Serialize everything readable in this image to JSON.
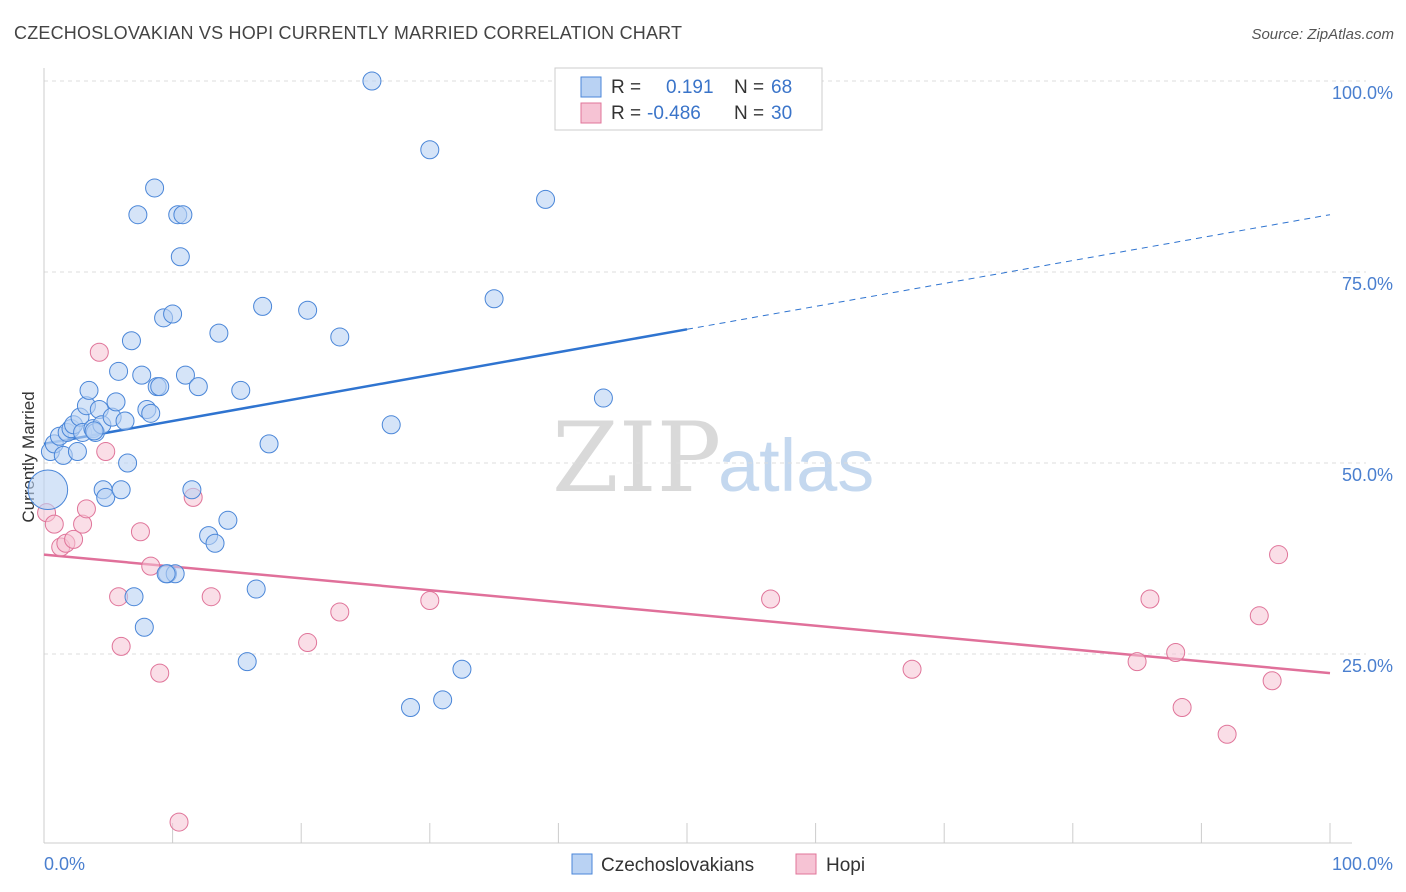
{
  "title": "CZECHOSLOVAKIAN VS HOPI CURRENTLY MARRIED CORRELATION CHART",
  "source": "Source: ZipAtlas.com",
  "watermark": {
    "zip": "ZIP",
    "atlas": "atlas"
  },
  "colors": {
    "blue": "#4a86d8",
    "blue_fill": "#b9d2f3",
    "blue_line": "#2f74d0",
    "pink": "#e0759a",
    "pink_fill": "#f6c3d4",
    "pink_line": "#e0709a",
    "grid": "#dddddd",
    "axis_text": "#4a7fcf"
  },
  "legend": {
    "rows": [
      {
        "r_label": "R =",
        "r_value": "0.191",
        "n_label": "N =",
        "n_value": "68",
        "series": "blue"
      },
      {
        "r_label": "R =",
        "r_value": "-0.486",
        "n_label": "N =",
        "n_value": "30",
        "series": "pink"
      }
    ]
  },
  "bottom_legend": {
    "items": [
      {
        "label": "Czechoslovakians",
        "series": "blue"
      },
      {
        "label": "Hopi",
        "series": "pink"
      }
    ]
  },
  "chart_data": {
    "type": "scatter",
    "title": "CZECHOSLOVAKIAN VS HOPI CURRENTLY MARRIED CORRELATION CHART",
    "xlabel": "",
    "ylabel": "Currently Married",
    "xlim": [
      0,
      100
    ],
    "ylim": [
      0,
      105
    ],
    "x_tick_labels": [
      "0.0%",
      "100.0%"
    ],
    "y_ticks": [
      25,
      50,
      75,
      100
    ],
    "y_tick_labels": [
      "25.0%",
      "50.0%",
      "75.0%",
      "100.0%"
    ],
    "grid": true,
    "legend_position": "top-center",
    "series": [
      {
        "name": "Czechoslovakians",
        "color": "#4a86d8",
        "r": 0.191,
        "n": 68,
        "trend": {
          "x0": 0,
          "y0": 52.5,
          "x1": 50,
          "y1": 67.5,
          "dashed_to_x": 100,
          "dashed_to_y": 82.5
        },
        "points": [
          [
            0.3,
            46.5,
            2.2
          ],
          [
            0.5,
            51.5,
            1
          ],
          [
            0.8,
            52.5,
            1
          ],
          [
            1.2,
            53.5,
            1
          ],
          [
            1.5,
            51,
            1
          ],
          [
            1.8,
            54,
            1
          ],
          [
            2.1,
            54.5,
            1
          ],
          [
            2.3,
            55,
            1
          ],
          [
            2.6,
            51.5,
            1
          ],
          [
            2.8,
            56,
            1
          ],
          [
            3.0,
            54,
            1
          ],
          [
            3.3,
            57.5,
            1
          ],
          [
            3.5,
            59.5,
            1
          ],
          [
            3.8,
            54.5,
            1
          ],
          [
            4.0,
            54,
            1
          ],
          [
            4.3,
            57,
            1
          ],
          [
            4.5,
            55,
            1
          ],
          [
            4.6,
            46.5,
            1
          ],
          [
            4.8,
            45.5,
            1
          ],
          [
            5.3,
            56,
            1
          ],
          [
            5.6,
            58,
            1
          ],
          [
            5.8,
            62,
            1
          ],
          [
            6.0,
            46.5,
            1
          ],
          [
            6.3,
            55.5,
            1
          ],
          [
            6.5,
            50,
            1
          ],
          [
            6.8,
            66,
            1
          ],
          [
            7.0,
            32.5,
            1
          ],
          [
            7.3,
            82.5,
            1
          ],
          [
            7.6,
            61.5,
            1
          ],
          [
            7.8,
            28.5,
            1
          ],
          [
            8.0,
            57,
            1
          ],
          [
            8.3,
            56.5,
            1
          ],
          [
            8.6,
            86,
            1
          ],
          [
            8.8,
            60,
            1
          ],
          [
            9.0,
            60,
            1
          ],
          [
            9.3,
            69,
            1
          ],
          [
            9.6,
            35.5,
            1
          ],
          [
            10.0,
            69.5,
            1
          ],
          [
            10.2,
            35.5,
            1
          ],
          [
            10.4,
            82.5,
            1
          ],
          [
            10.6,
            77,
            1
          ],
          [
            10.8,
            82.5,
            1
          ],
          [
            11.0,
            61.5,
            1
          ],
          [
            11.5,
            46.5,
            1
          ],
          [
            12.0,
            60,
            1
          ],
          [
            12.8,
            40.5,
            1
          ],
          [
            13.3,
            39.5,
            1
          ],
          [
            13.6,
            67,
            1
          ],
          [
            14.3,
            42.5,
            1
          ],
          [
            15.3,
            59.5,
            1
          ],
          [
            15.8,
            24,
            1
          ],
          [
            16.5,
            33.5,
            1
          ],
          [
            17.0,
            70.5,
            1
          ],
          [
            17.5,
            52.5,
            1
          ],
          [
            20.5,
            70,
            1
          ],
          [
            23.0,
            66.5,
            1
          ],
          [
            25.5,
            100,
            1
          ],
          [
            27.0,
            55,
            1
          ],
          [
            28.5,
            18,
            1
          ],
          [
            30.0,
            91,
            1
          ],
          [
            31.0,
            19,
            1
          ],
          [
            32.5,
            23,
            1
          ],
          [
            35.0,
            71.5,
            1
          ],
          [
            39.0,
            84.5,
            1
          ],
          [
            43.5,
            58.5,
            1
          ],
          [
            50.0,
            100,
            1
          ],
          [
            9.5,
            35.5,
            1
          ],
          [
            3.9,
            54.2,
            1
          ]
        ]
      },
      {
        "name": "Hopi",
        "color": "#e0759a",
        "r": -0.486,
        "n": 30,
        "trend": {
          "x0": 0,
          "y0": 38,
          "x1": 100,
          "y1": 22.5
        },
        "points": [
          [
            0.2,
            43.5
          ],
          [
            0.8,
            42
          ],
          [
            1.3,
            39
          ],
          [
            1.7,
            39.5
          ],
          [
            2.3,
            40
          ],
          [
            3.0,
            42
          ],
          [
            3.3,
            44
          ],
          [
            4.3,
            64.5
          ],
          [
            4.8,
            51.5
          ],
          [
            5.8,
            32.5
          ],
          [
            6.0,
            26
          ],
          [
            7.5,
            41
          ],
          [
            8.3,
            36.5
          ],
          [
            9.0,
            22.5
          ],
          [
            10.5,
            3
          ],
          [
            11.6,
            45.5
          ],
          [
            13.0,
            32.5
          ],
          [
            20.5,
            26.5
          ],
          [
            23.0,
            30.5
          ],
          [
            30.0,
            32
          ],
          [
            56.5,
            32.2
          ],
          [
            67.5,
            23
          ],
          [
            85.0,
            24
          ],
          [
            86.0,
            32.2
          ],
          [
            88.0,
            25.2
          ],
          [
            88.5,
            18
          ],
          [
            92.0,
            14.5
          ],
          [
            94.5,
            30
          ],
          [
            95.5,
            21.5
          ],
          [
            96.0,
            38
          ]
        ]
      }
    ]
  }
}
